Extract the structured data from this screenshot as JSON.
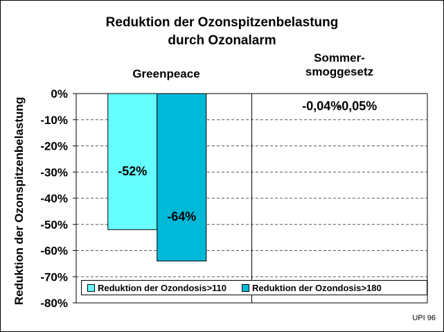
{
  "chart_data": {
    "type": "bar",
    "title_line1": "Reduktion der Ozonspitzenbelastung",
    "title_line2": "durch Ozonalarm",
    "ylabel": "Reduktion der Ozonspitzenbelastung",
    "categories": [
      "Greenpeace",
      "Sommer-\nsmoggesetz"
    ],
    "category_lines": [
      [
        "Greenpeace"
      ],
      [
        "Sommer-",
        "smoggesetz"
      ]
    ],
    "series": [
      {
        "name": "Reduktion der Ozondosis>110",
        "values": [
          -52,
          -0.04
        ],
        "labels": [
          "-52%",
          "-0,04%"
        ],
        "color": "#66FFFF"
      },
      {
        "name": "Reduktion der Ozondosis>180",
        "values": [
          -64,
          -0.05
        ],
        "labels": [
          "-64%",
          "-0,05%"
        ],
        "color": "#00B8D8"
      }
    ],
    "ylim": [
      -80,
      0
    ],
    "yticks": [
      0,
      -10,
      -20,
      -30,
      -40,
      -50,
      -60,
      -70,
      -80
    ],
    "ytick_labels": [
      "0%",
      "-10%",
      "-20%",
      "-30%",
      "-40%",
      "-50%",
      "-60%",
      "-70%",
      "-80%"
    ],
    "grid": true,
    "legend_position": "bottom"
  },
  "credit": "UPI 96"
}
